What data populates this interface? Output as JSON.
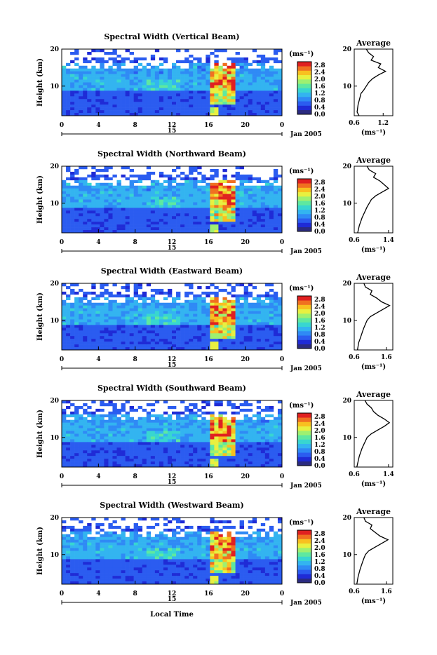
{
  "figure": {
    "date_label": "Jan 2005",
    "day_label": "15",
    "x_axis_label": "Local Time",
    "y_axis_label": "Height (km)",
    "colorbar_unit": "(ms⁻¹)",
    "profile_title": "Average",
    "profile_unit": "(ms⁻¹)"
  },
  "colors": {
    "colormap": [
      "#2b2b80",
      "#1f2bd6",
      "#2b5cf0",
      "#2f8af5",
      "#33b4f0",
      "#38d6d0",
      "#5ee8a0",
      "#9ef070",
      "#e8f040",
      "#f8c020",
      "#f07020",
      "#e02020"
    ]
  },
  "chart_data": [
    {
      "type": "heatmap",
      "title": "Spectral Width (Vertical Beam)",
      "x_ticks": [
        "0",
        "4",
        "8",
        "12",
        "16",
        "20",
        "0"
      ],
      "y_ticks": [
        "20",
        "10"
      ],
      "xlim": [
        0,
        24
      ],
      "ylim": [
        2,
        20
      ],
      "colorbar_ticks": [
        "2.8",
        "2.4",
        "2.0",
        "1.6",
        "1.2",
        "0.8",
        "0.4",
        "0.0"
      ],
      "colorbar_range": [
        0.0,
        3.0
      ],
      "profile": {
        "title": "Average",
        "xlim": [
          0.6,
          1.4
        ],
        "x_ticks": [
          "0.6",
          "1.2"
        ],
        "y_ticks": [
          "20",
          "10"
        ],
        "heights": [
          2,
          3,
          4,
          5,
          6,
          7,
          8,
          9,
          10,
          11,
          12,
          13,
          14,
          15,
          16,
          17,
          18,
          19,
          20
        ],
        "values": [
          0.7,
          0.66,
          0.67,
          0.68,
          0.7,
          0.72,
          0.74,
          0.8,
          0.85,
          0.9,
          0.98,
          1.1,
          1.25,
          1.1,
          1.15,
          0.95,
          1.0,
          0.9,
          0.85
        ]
      }
    },
    {
      "type": "heatmap",
      "title": "Spectral Width (Northward Beam)",
      "x_ticks": [
        "0",
        "4",
        "8",
        "12",
        "16",
        "20",
        "0"
      ],
      "y_ticks": [
        "20",
        "10"
      ],
      "xlim": [
        0,
        24
      ],
      "ylim": [
        2,
        20
      ],
      "colorbar_ticks": [
        "2.8",
        "2.4",
        "2.0",
        "1.6",
        "1.2",
        "0.8",
        "0.4",
        "0.0"
      ],
      "colorbar_range": [
        0.0,
        3.0
      ],
      "profile": {
        "title": "Average",
        "xlim": [
          0.6,
          1.5
        ],
        "x_ticks": [
          "0.6",
          "1.4"
        ],
        "y_ticks": [
          "20",
          "10"
        ],
        "heights": [
          2,
          3,
          4,
          5,
          6,
          7,
          8,
          9,
          10,
          11,
          12,
          13,
          14,
          15,
          16,
          17,
          18,
          19,
          20
        ],
        "values": [
          0.68,
          0.7,
          0.72,
          0.75,
          0.78,
          0.82,
          0.86,
          0.9,
          0.95,
          1.0,
          1.1,
          1.25,
          1.4,
          1.3,
          1.2,
          1.05,
          1.1,
          0.95,
          0.9
        ]
      }
    },
    {
      "type": "heatmap",
      "title": "Spectral Width (Eastward Beam)",
      "x_ticks": [
        "0",
        "4",
        "8",
        "12",
        "16",
        "20",
        "0"
      ],
      "y_ticks": [
        "20",
        "10"
      ],
      "xlim": [
        0,
        24
      ],
      "ylim": [
        2,
        20
      ],
      "colorbar_ticks": [
        "2.8",
        "2.4",
        "2.0",
        "1.6",
        "1.2",
        "0.8",
        "0.4",
        "0.0"
      ],
      "colorbar_range": [
        0.0,
        3.0
      ],
      "profile": {
        "title": "Average",
        "xlim": [
          0.6,
          1.8
        ],
        "x_ticks": [
          "0.6",
          "1.6"
        ],
        "y_ticks": [
          "20",
          "10"
        ],
        "heights": [
          2,
          3,
          4,
          5,
          6,
          7,
          8,
          9,
          10,
          11,
          12,
          13,
          14,
          15,
          16,
          17,
          18,
          19,
          20
        ],
        "values": [
          0.7,
          0.72,
          0.74,
          0.78,
          0.82,
          0.86,
          0.9,
          0.95,
          1.0,
          1.1,
          1.3,
          1.5,
          1.7,
          1.45,
          1.3,
          1.1,
          1.15,
          0.95,
          0.9
        ]
      }
    },
    {
      "type": "heatmap",
      "title": "Spectral Width (Southward Beam)",
      "x_ticks": [
        "0",
        "4",
        "8",
        "12",
        "16",
        "20",
        "0"
      ],
      "y_ticks": [
        "20",
        "10"
      ],
      "xlim": [
        0,
        24
      ],
      "ylim": [
        2,
        20
      ],
      "colorbar_ticks": [
        "2.8",
        "2.4",
        "2.0",
        "1.6",
        "1.2",
        "0.8",
        "0.4",
        "0.0"
      ],
      "colorbar_range": [
        0.0,
        3.0
      ],
      "profile": {
        "title": "Average",
        "xlim": [
          0.6,
          1.5
        ],
        "x_ticks": [
          "0.6",
          "1.4"
        ],
        "y_ticks": [
          "20",
          "10"
        ],
        "heights": [
          2,
          3,
          4,
          5,
          6,
          7,
          8,
          9,
          10,
          11,
          12,
          13,
          14,
          15,
          16,
          17,
          18,
          19,
          20
        ],
        "values": [
          0.66,
          0.68,
          0.7,
          0.72,
          0.75,
          0.78,
          0.82,
          0.86,
          0.9,
          1.0,
          1.15,
          1.3,
          1.42,
          1.3,
          1.15,
          1.05,
          1.0,
          0.9,
          0.85
        ]
      }
    },
    {
      "type": "heatmap",
      "title": "Spectral Width (Westward Beam)",
      "x_ticks": [
        "0",
        "4",
        "8",
        "12",
        "16",
        "20",
        "0"
      ],
      "y_ticks": [
        "20",
        "10"
      ],
      "xlim": [
        0,
        24
      ],
      "ylim": [
        2,
        20
      ],
      "colorbar_ticks": [
        "2.8",
        "2.4",
        "2.0",
        "1.6",
        "1.2",
        "0.8",
        "0.4",
        "0.0"
      ],
      "colorbar_range": [
        0.0,
        3.0
      ],
      "profile": {
        "title": "Average",
        "xlim": [
          0.6,
          1.8
        ],
        "x_ticks": [
          "0.6",
          "1.6"
        ],
        "y_ticks": [
          "20",
          "10"
        ],
        "heights": [
          2,
          3,
          4,
          5,
          6,
          7,
          8,
          9,
          10,
          11,
          12,
          13,
          14,
          15,
          16,
          17,
          18,
          19,
          20
        ],
        "values": [
          0.68,
          0.7,
          0.72,
          0.75,
          0.78,
          0.82,
          0.86,
          0.9,
          0.95,
          1.05,
          1.25,
          1.45,
          1.65,
          1.4,
          1.25,
          1.1,
          1.15,
          0.95,
          0.9
        ]
      }
    }
  ]
}
